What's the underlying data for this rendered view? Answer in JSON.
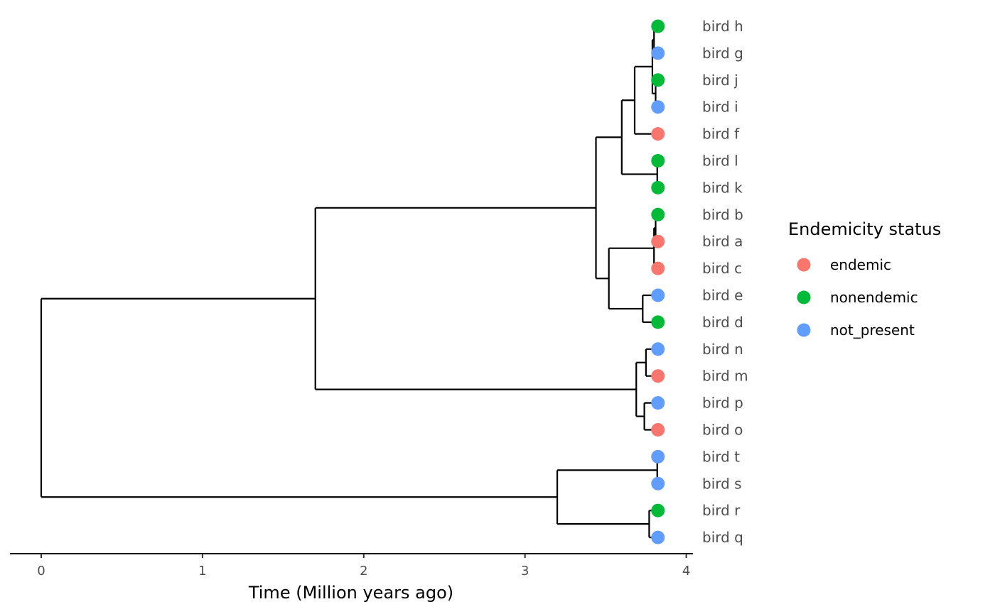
{
  "chart_data": {
    "type": "dendrogram",
    "xlabel": "Time (Million years ago)",
    "x_ticks": [
      0,
      1,
      2,
      3,
      4
    ],
    "xlim": [
      -0.2,
      4.05
    ],
    "legend": {
      "title": "Endemicity status",
      "position": "right",
      "items": [
        {
          "label": "endemic",
          "color": "#F8766D"
        },
        {
          "label": "nonendemic",
          "color": "#00BA38"
        },
        {
          "label": "not_present",
          "color": "#619CFF"
        }
      ]
    },
    "tip_time": 3.82,
    "tips": [
      {
        "name": "bird h",
        "status": "nonendemic"
      },
      {
        "name": "bird g",
        "status": "not_present"
      },
      {
        "name": "bird j",
        "status": "nonendemic"
      },
      {
        "name": "bird i",
        "status": "not_present"
      },
      {
        "name": "bird f",
        "status": "endemic"
      },
      {
        "name": "bird l",
        "status": "nonendemic"
      },
      {
        "name": "bird k",
        "status": "nonendemic"
      },
      {
        "name": "bird b",
        "status": "nonendemic"
      },
      {
        "name": "bird a",
        "status": "endemic"
      },
      {
        "name": "bird c",
        "status": "endemic"
      },
      {
        "name": "bird e",
        "status": "not_present"
      },
      {
        "name": "bird d",
        "status": "nonendemic"
      },
      {
        "name": "bird n",
        "status": "not_present"
      },
      {
        "name": "bird m",
        "status": "endemic"
      },
      {
        "name": "bird p",
        "status": "not_present"
      },
      {
        "name": "bird o",
        "status": "endemic"
      },
      {
        "name": "bird t",
        "status": "not_present"
      },
      {
        "name": "bird s",
        "status": "not_present"
      },
      {
        "name": "bird r",
        "status": "nonendemic"
      },
      {
        "name": "bird q",
        "status": "not_present"
      }
    ],
    "tree": {
      "t": 0,
      "children": [
        {
          "t": 1.7,
          "children": [
            {
              "t": 3.44,
              "children": [
                {
                  "t": 3.6,
                  "children": [
                    {
                      "t": 3.68,
                      "children": [
                        {
                          "t": 3.79,
                          "children": [
                            {
                              "t": 3.8,
                              "children": [
                                {
                                  "tip": "bird h"
                                },
                                {
                                  "tip": "bird g"
                                }
                              ]
                            },
                            {
                              "t": 3.81,
                              "children": [
                                {
                                  "tip": "bird j"
                                },
                                {
                                  "tip": "bird i"
                                }
                              ]
                            }
                          ]
                        },
                        {
                          "tip": "bird f"
                        }
                      ]
                    },
                    {
                      "t": 3.82,
                      "children": [
                        {
                          "tip": "bird l"
                        },
                        {
                          "tip": "bird k"
                        }
                      ]
                    }
                  ]
                },
                {
                  "t": 3.52,
                  "children": [
                    {
                      "t": 3.8,
                      "children": [
                        {
                          "t": 3.81,
                          "children": [
                            {
                              "tip": "bird b"
                            },
                            {
                              "tip": "bird a"
                            }
                          ]
                        },
                        {
                          "tip": "bird c"
                        }
                      ]
                    },
                    {
                      "t": 3.73,
                      "children": [
                        {
                          "tip": "bird e"
                        },
                        {
                          "tip": "bird d"
                        }
                      ]
                    }
                  ]
                }
              ]
            },
            {
              "t": 3.69,
              "children": [
                {
                  "t": 3.75,
                  "children": [
                    {
                      "tip": "bird n"
                    },
                    {
                      "tip": "bird m"
                    }
                  ]
                },
                {
                  "t": 3.74,
                  "children": [
                    {
                      "tip": "bird p"
                    },
                    {
                      "tip": "bird o"
                    }
                  ]
                }
              ]
            }
          ]
        },
        {
          "t": 3.2,
          "children": [
            {
              "t": 3.82,
              "children": [
                {
                  "tip": "bird t"
                },
                {
                  "tip": "bird s"
                }
              ]
            },
            {
              "t": 3.77,
              "children": [
                {
                  "tip": "bird r"
                },
                {
                  "tip": "bird q"
                }
              ]
            }
          ]
        }
      ]
    }
  }
}
